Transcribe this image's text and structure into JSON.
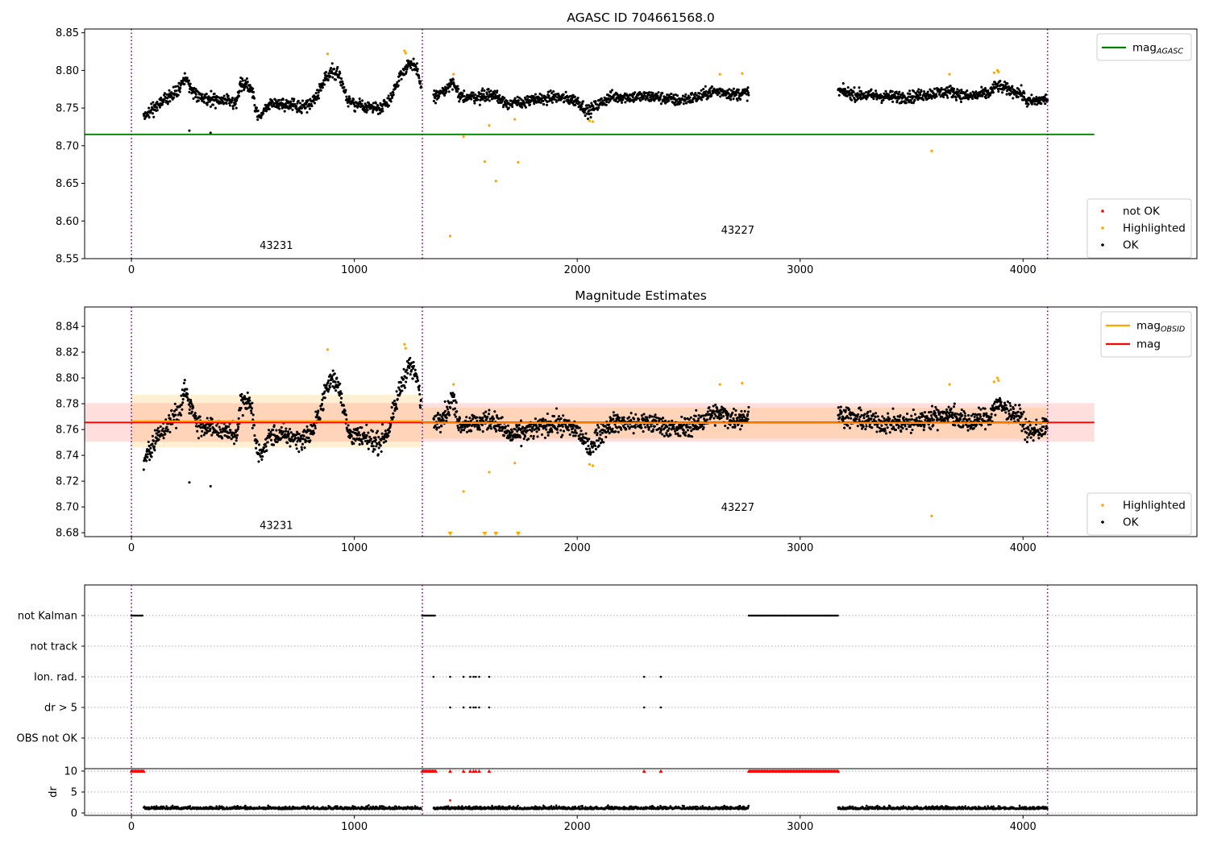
{
  "figure": {
    "title": "AGASC ID 704661568.0"
  },
  "chart_data": [
    {
      "type": "scatter",
      "title": "AGASC ID 704661568.0",
      "xlim": [
        -210,
        4780
      ],
      "ylim": [
        8.55,
        8.855
      ],
      "x_ticks": [
        "0",
        "1000",
        "2000",
        "3000",
        "4000"
      ],
      "y_ticks": [
        "8.55",
        "8.60",
        "8.65",
        "8.70",
        "8.75",
        "8.80",
        "8.85"
      ],
      "legend_lines": [
        {
          "label": "mag",
          "sub": "AGASC",
          "color": "#008000"
        }
      ],
      "legend_points": [
        {
          "label": "not OK",
          "color": "#ff0000"
        },
        {
          "label": "Highlighted",
          "color": "#ffa500"
        },
        {
          "label": "OK",
          "color": "#000000"
        }
      ],
      "hlines": [
        {
          "y": 8.715,
          "x0": -210,
          "x1": 4320,
          "color": "#008000"
        }
      ],
      "obsid_boundaries": [
        0,
        1305,
        4110
      ],
      "obsid_labels": [
        {
          "text": "43231",
          "x": 650,
          "y": 8.563
        },
        {
          "text": "43227",
          "x": 2720,
          "y": 8.583
        }
      ],
      "outliers_highlighted": [
        {
          "x": 1430,
          "y": 8.58
        },
        {
          "x": 1490,
          "y": 8.712
        },
        {
          "x": 1585,
          "y": 8.679
        },
        {
          "x": 1605,
          "y": 8.727
        },
        {
          "x": 1635,
          "y": 8.653
        },
        {
          "x": 1720,
          "y": 8.735
        },
        {
          "x": 1735,
          "y": 8.678
        },
        {
          "x": 3590,
          "y": 8.693
        },
        {
          "x": 880,
          "y": 8.822
        },
        {
          "x": 1225,
          "y": 8.826
        },
        {
          "x": 1230,
          "y": 8.823
        },
        {
          "x": 2640,
          "y": 8.795
        },
        {
          "x": 2740,
          "y": 8.796
        },
        {
          "x": 3670,
          "y": 8.795
        },
        {
          "x": 3870,
          "y": 8.797
        },
        {
          "x": 3885,
          "y": 8.8
        },
        {
          "x": 3890,
          "y": 8.798
        },
        {
          "x": 1445,
          "y": 8.795
        },
        {
          "x": 2055,
          "y": 8.733
        },
        {
          "x": 2070,
          "y": 8.732
        }
      ],
      "outliers_ok": [
        {
          "x": 260,
          "y": 8.72
        },
        {
          "x": 355,
          "y": 8.717
        }
      ]
    },
    {
      "type": "scatter",
      "title": "Magnitude Estimates",
      "xlim": [
        -210,
        4780
      ],
      "ylim": [
        8.677,
        8.855
      ],
      "x_ticks": [
        "0",
        "1000",
        "2000",
        "3000",
        "4000"
      ],
      "y_ticks": [
        "8.68",
        "8.70",
        "8.72",
        "8.74",
        "8.76",
        "8.78",
        "8.80",
        "8.82",
        "8.84"
      ],
      "legend_lines": [
        {
          "label": "mag",
          "sub": "OBSID",
          "color": "#ffa500"
        },
        {
          "label": "mag",
          "sub": "",
          "color": "#ff0000"
        }
      ],
      "legend_points": [
        {
          "label": "Highlighted",
          "color": "#ffa500"
        },
        {
          "label": "OK",
          "color": "#000000"
        }
      ],
      "hlines": [
        {
          "y": 8.7655,
          "x0": -210,
          "x1": 4320,
          "color": "#ff0000"
        },
        {
          "y": 8.7665,
          "x0": 0,
          "x1": 1300,
          "color": "#ffa500"
        },
        {
          "y": 8.765,
          "x0": 1305,
          "x1": 4110,
          "color": "#ffa500"
        }
      ],
      "bands": [
        {
          "x0": -210,
          "x1": 4320,
          "y0": 8.7505,
          "y1": 8.7805,
          "color": "#ff0000",
          "opacity": 0.13
        },
        {
          "x0": 0,
          "x1": 1300,
          "y0": 8.746,
          "y1": 8.787,
          "color": "#ffa500",
          "opacity": 0.17
        },
        {
          "x0": 1305,
          "x1": 4110,
          "y0": 8.753,
          "y1": 8.777,
          "color": "#ffa500",
          "opacity": 0.17
        }
      ],
      "obsid_boundaries": [
        0,
        1305,
        4110
      ],
      "obsid_labels": [
        {
          "text": "43231",
          "x": 650,
          "y": 8.683
        },
        {
          "text": "43227",
          "x": 2720,
          "y": 8.697
        }
      ],
      "outliers_highlighted": [
        {
          "x": 1490,
          "y": 8.712
        },
        {
          "x": 1605,
          "y": 8.727
        },
        {
          "x": 1720,
          "y": 8.734
        },
        {
          "x": 3590,
          "y": 8.693
        },
        {
          "x": 880,
          "y": 8.822
        },
        {
          "x": 1225,
          "y": 8.826
        },
        {
          "x": 1230,
          "y": 8.823
        },
        {
          "x": 2640,
          "y": 8.795
        },
        {
          "x": 2740,
          "y": 8.796
        },
        {
          "x": 3670,
          "y": 8.795
        },
        {
          "x": 3870,
          "y": 8.797
        },
        {
          "x": 3885,
          "y": 8.8
        },
        {
          "x": 3890,
          "y": 8.798
        },
        {
          "x": 1445,
          "y": 8.795
        },
        {
          "x": 2055,
          "y": 8.733
        },
        {
          "x": 2070,
          "y": 8.732
        }
      ],
      "clipped_markers": [
        {
          "x": 1430
        },
        {
          "x": 1585
        },
        {
          "x": 1635
        },
        {
          "x": 1735
        }
      ],
      "outliers_ok": [
        {
          "x": 260,
          "y": 8.719
        },
        {
          "x": 355,
          "y": 8.716
        }
      ]
    },
    {
      "type": "scatter",
      "title": "",
      "xlim": [
        -210,
        4780
      ],
      "x_ticks": [
        "0",
        "1000",
        "2000",
        "3000",
        "4000"
      ],
      "flag_rows": [
        "not Kalman",
        "not track",
        "Ion. rad.",
        "dr > 5",
        "OBS not OK"
      ],
      "dr_ylabel": "dr",
      "dr_ticks": [
        "0",
        "5",
        "10"
      ],
      "obsid_boundaries": [
        0,
        1305,
        4110
      ],
      "flag_segments": {
        "not Kalman": [
          [
            0,
            55
          ],
          [
            1305,
            1365
          ],
          [
            2770,
            3170
          ]
        ],
        "Ion. rad.": [
          [
            1355
          ],
          [
            1430
          ],
          [
            1490
          ],
          [
            1520
          ],
          [
            1535
          ],
          [
            1545
          ],
          [
            1560
          ],
          [
            1605
          ],
          [
            2300
          ],
          [
            2375
          ]
        ],
        "dr > 5": [
          [
            1430
          ],
          [
            1490
          ],
          [
            1520
          ],
          [
            1535
          ],
          [
            1545
          ],
          [
            1560
          ],
          [
            1605
          ],
          [
            2300
          ],
          [
            2375
          ]
        ]
      },
      "red_triangles_ranges": [
        [
          0,
          55
        ],
        [
          1305,
          1365
        ],
        [
          2770,
          3170
        ]
      ],
      "red_triangles_points": [
        1430,
        1490,
        1520,
        1535,
        1545,
        1560,
        1605,
        2300,
        2375
      ],
      "dr_points_gaps": [
        [
          0,
          55
        ],
        [
          1305,
          1365
        ],
        [
          2770,
          3170
        ]
      ],
      "dr_outlier": {
        "x": 1430,
        "y": 3
      }
    }
  ]
}
